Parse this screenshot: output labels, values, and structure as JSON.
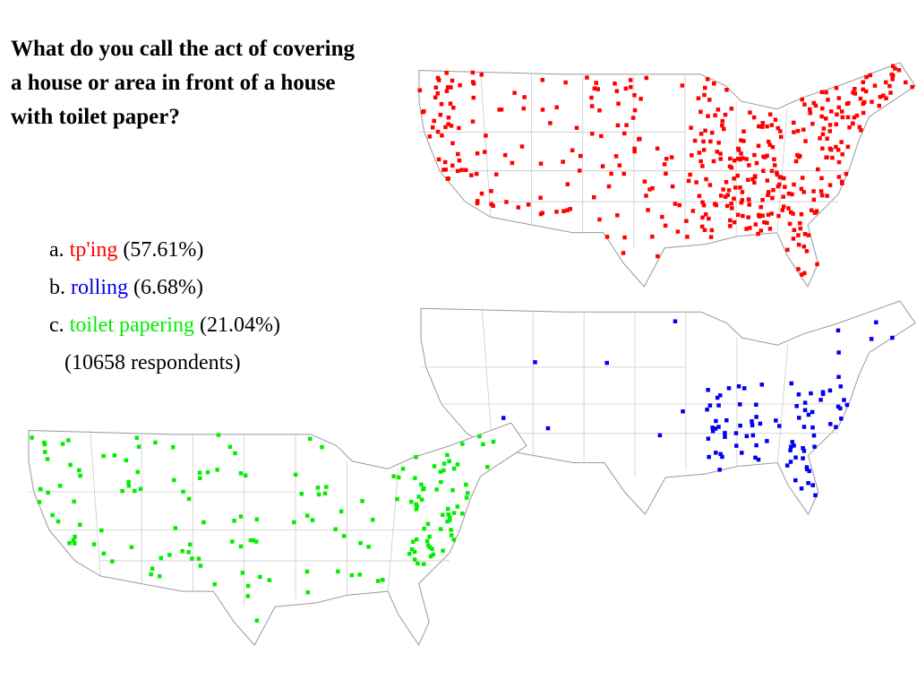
{
  "question": "What do you call the act of covering a house or area in front of a house with toilet paper?",
  "options": [
    {
      "prefix": "a.",
      "answer": "tp'ing",
      "share": "(57.61%)",
      "color": "#ff0000"
    },
    {
      "prefix": "b.",
      "answer": "rolling",
      "share": "(6.68%)",
      "color": "#0000ee"
    },
    {
      "prefix": "c.",
      "answer": "toilet papering",
      "share": "(21.04%)",
      "color": "#00ee00"
    }
  ],
  "respondents": "(10658 respondents)"
}
